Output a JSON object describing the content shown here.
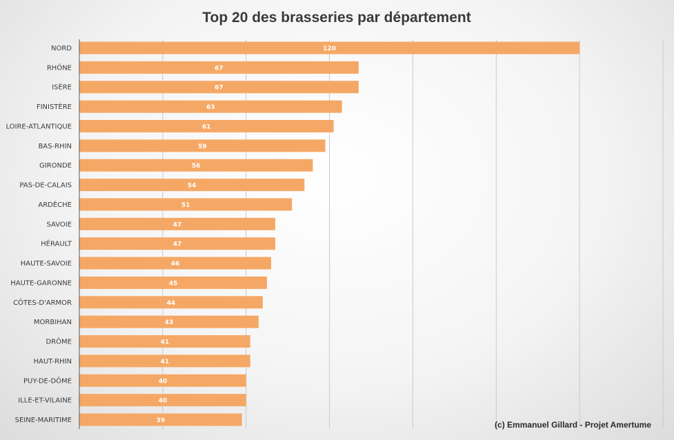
{
  "chart_data": {
    "type": "bar",
    "orientation": "horizontal",
    "title": "Top 20 des brasseries par département",
    "credit": "(c) Emmanuel  Gillard  - Projet Amertume",
    "xlim": [
      0,
      140
    ],
    "x_gridlines": [
      20,
      40,
      60,
      80,
      100,
      120,
      140
    ],
    "xlabel": "",
    "ylabel": "",
    "bar_color": "#f5a865",
    "categories": [
      "NORD",
      "RHÔNE",
      "ISÈRE",
      "FINISTÈRE",
      "LOIRE-ATLANTIQUE",
      "BAS-RHIN",
      "GIRONDE",
      "PAS-DE-CALAIS",
      "ARDÈCHE",
      "SAVOIE",
      "HÉRAULT",
      "HAUTE-SAVOIE",
      "HAUTE-GARONNE",
      "CÔTES-D'ARMOR",
      "MORBIHAN",
      "DRÔME",
      "HAUT-RHIN",
      "PUY-DE-DÔME",
      "ILLE-ET-VILAINE",
      "SEINE-MARITIME"
    ],
    "values": [
      120,
      67,
      67,
      63,
      61,
      59,
      56,
      54,
      51,
      47,
      47,
      46,
      45,
      44,
      43,
      41,
      41,
      40,
      40,
      39
    ]
  }
}
